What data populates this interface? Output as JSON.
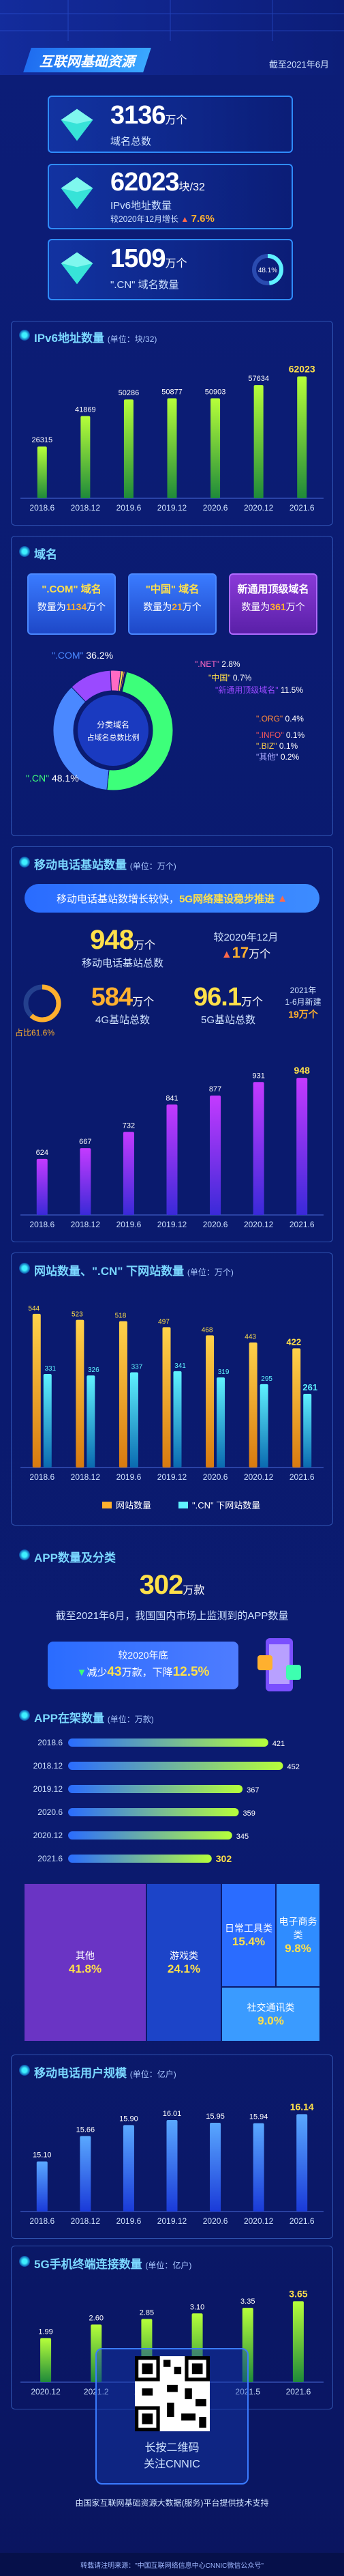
{
  "header": {
    "title": "互联网基础资源",
    "date": "截至2021年6月"
  },
  "kpis": [
    {
      "value": "3136",
      "unit": "万个",
      "label": "域名总数"
    },
    {
      "value": "62023",
      "unit": "块/32",
      "label": "IPv6地址数量",
      "note": "较2020年12月增长",
      "growth": "7.6%"
    },
    {
      "value": "1509",
      "unit": "万个",
      "label": "\".CN\" 域名数量",
      "share": "48.1%"
    }
  ],
  "ipv6": {
    "title": "IPv6地址数量",
    "unit_note": "(单位：块/32)",
    "chart_data": {
      "type": "bar",
      "categories": [
        "2018.6",
        "2018.12",
        "2019.6",
        "2019.12",
        "2020.6",
        "2020.12",
        "2021.6"
      ],
      "values": [
        26315,
        41869,
        50286,
        50877,
        50903,
        57634,
        62023
      ]
    }
  },
  "domain": {
    "title": "域名",
    "cards": [
      {
        "name": "\".COM\" 域名",
        "label": "数量为",
        "value": "1134",
        "unit": "万个"
      },
      {
        "name": "\"中国\" 域名",
        "label": "数量为",
        "value": "21",
        "unit": "万个"
      },
      {
        "name": "新通用顶级域名",
        "label": "数量为",
        "value": "361",
        "unit": "万个"
      }
    ],
    "center_line1": "分类域名",
    "center_line2": "占域名总数比例",
    "chart_data": {
      "type": "pie",
      "slices": [
        {
          "name": "\".CN\"",
          "value": 48.1
        },
        {
          "name": "\".COM\"",
          "value": 36.2
        },
        {
          "name": "\"新通用顶级域名\"",
          "value": 11.5
        },
        {
          "name": "\".NET\"",
          "value": 2.8
        },
        {
          "name": "\"中国\"",
          "value": 0.7
        },
        {
          "name": "\".ORG\"",
          "value": 0.4
        },
        {
          "name": "\".INFO\"",
          "value": 0.1
        },
        {
          "name": "\".BIZ\"",
          "value": 0.1
        },
        {
          "name": "\"其他\"",
          "value": 0.2
        }
      ]
    }
  },
  "mobile_station": {
    "title": "移动电话基站数量",
    "unit_note": "(单位：万个)",
    "banner_text": "移动电话基站数增长较快，",
    "banner_highlight": "5G网络建设稳步推进",
    "total_value": "948",
    "total_unit": "万个",
    "total_label": "移动电话基站总数",
    "increase_note": "较2020年12月",
    "increase_value": "17",
    "increase_unit": "万个",
    "fourg_value": "584",
    "fourg_unit": "万个",
    "fourg_label": "4G基站总数",
    "fourg_share": "占比61.6%",
    "fiveg_value": "96.1",
    "fiveg_unit": "万个",
    "fiveg_label": "5G基站总数",
    "fiveg_note1": "2021年",
    "fiveg_note2": "1-6月新建",
    "fiveg_note3": "19万个",
    "chart_data": {
      "type": "bar",
      "categories": [
        "2018.6",
        "2018.12",
        "2019.6",
        "2019.12",
        "2020.6",
        "2020.12",
        "2021.6"
      ],
      "values": [
        624,
        667,
        732,
        841,
        877,
        931,
        948
      ]
    }
  },
  "websites": {
    "title": "网站数量、\".CN\" 下网站数量",
    "unit_note": "(单位：万个)",
    "chart_data": {
      "type": "bar",
      "categories": [
        "2018.6",
        "2018.12",
        "2019.6",
        "2019.12",
        "2020.6",
        "2020.12",
        "2021.6"
      ],
      "series": [
        {
          "name": "网站数量",
          "values": [
            544,
            523,
            518,
            497,
            468,
            443,
            422
          ]
        },
        {
          "name": "\".CN\" 下网站数量",
          "values": [
            331,
            326,
            337,
            341,
            319,
            295,
            261
          ]
        }
      ]
    }
  },
  "apps": {
    "title": "APP数量及分类",
    "total_value": "302",
    "total_unit": "万款",
    "desc": "截至2021年6月，我国国内市场上监测到的APP数量",
    "compare_line1": "较2020年底",
    "compare_line2_prefix": "减少",
    "compare_value": "43",
    "compare_mid": "万款，下降",
    "compare_pct": "12.5%",
    "onshelf_title": "APP在架数量",
    "onshelf_unit": "(单位：万款)",
    "chart_data": {
      "type": "bar",
      "orientation": "horizontal",
      "categories": [
        "2018.6",
        "2018.12",
        "2019.12",
        "2020.6",
        "2020.12",
        "2021.6"
      ],
      "values": [
        421,
        452,
        367,
        359,
        345,
        302
      ]
    },
    "categories": [
      {
        "name": "其他",
        "pct": "41.8%"
      },
      {
        "name": "游戏类",
        "pct": "24.1%"
      },
      {
        "name": "日常工具类",
        "pct": "15.4%"
      },
      {
        "name": "电子商务类",
        "pct": "9.8%"
      },
      {
        "name": "社交通讯类",
        "pct": "9.0%"
      }
    ]
  },
  "mobile_users": {
    "title": "移动电话用户规模",
    "unit_note": "(单位：亿户)",
    "chart_data": {
      "type": "bar",
      "categories": [
        "2018.6",
        "2018.12",
        "2019.6",
        "2019.12",
        "2020.6",
        "2020.12",
        "2021.6"
      ],
      "values": [
        15.1,
        15.66,
        15.9,
        16.01,
        15.95,
        15.94,
        16.14
      ]
    }
  },
  "fiveg_terminals": {
    "title": "5G手机终端连接数量",
    "unit_note": "(单位：亿户)",
    "chart_data": {
      "type": "bar",
      "categories": [
        "2020.12",
        "2021.2",
        "2021.3",
        "2021.4",
        "2021.5",
        "2021.6"
      ],
      "values": [
        1.99,
        2.6,
        2.85,
        3.1,
        3.35,
        3.65
      ]
    }
  },
  "footer": {
    "qr_line1": "长按二维码",
    "qr_line2": "关注CNNIC",
    "support": "由国家互联网基础资源大数据(服务)平台提供技术支持",
    "source": "转载请注明来源：\"中国互联网络信息中心CNNIC微信公众号\""
  },
  "colors": {
    "accent": "#5ff2ff",
    "yellow": "#ffe04a",
    "orange": "#ffb02e",
    "green": "#3dff7a"
  }
}
